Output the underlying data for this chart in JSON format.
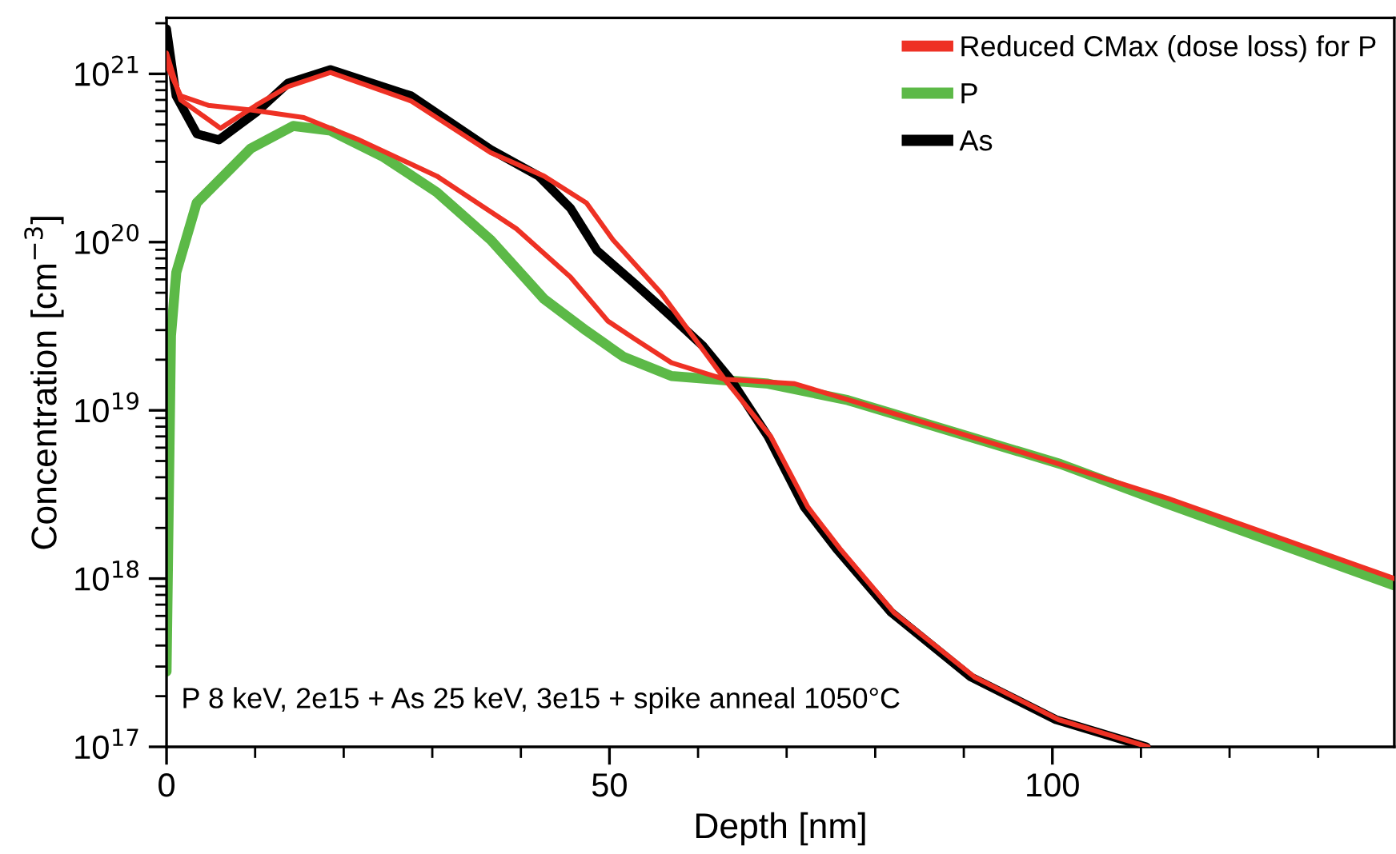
{
  "chart_data": {
    "type": "line",
    "xlabel": "Depth [nm]",
    "ylabel": "Concentration [cm$^{−3}$]",
    "log": "y",
    "xlim": [
      0,
      138.6
    ],
    "ylim": [
      1e+17,
      2.15e+21
    ],
    "xticks": [
      0,
      {
        "value": 10,
        "label": null
      },
      {
        "value": 20,
        "label": null
      },
      {
        "value": 30,
        "label": null
      },
      {
        "value": 40,
        "label": null
      },
      50,
      {
        "value": 60,
        "label": null
      },
      {
        "value": 70,
        "label": null
      },
      {
        "value": 80,
        "label": null
      },
      {
        "value": 90,
        "label": null
      },
      100,
      {
        "value": 110,
        "label": null
      },
      {
        "value": 120,
        "label": null
      },
      {
        "value": 130,
        "label": null
      }
    ],
    "yticks": [
      {
        "value": 1e+17,
        "label": "10$^{17}$"
      },
      {
        "value": 1e+18,
        "label": "10$^{18}$"
      },
      {
        "value": 1e+19,
        "label": "10$^{19}$"
      },
      {
        "value": 1e+20,
        "label": "10$^{20}$"
      },
      {
        "value": 1e+21,
        "label": "10$^{21}$"
      }
    ],
    "grid": false,
    "legend": "top right",
    "annotations": [
      "P 8 keV, 2e15 + As 25 keV, 3e15 + spike anneal 1050°C"
    ],
    "series": [
      {
        "name": "Reduced CMax (dose loss) for P",
        "color": "#ee3124",
        "x": [
          0,
          1.6,
          4.7,
          9.5,
          15.5,
          21.5,
          30.5,
          39.5,
          45.6,
          49.8,
          52.8,
          57.0,
          63.0,
          70.9,
          82.9,
          94.9,
          113.0,
          138.6
        ],
        "values": [
          1.14e+21,
          7.4e+20,
          6.5e+20,
          6.1e+20,
          5.5e+20,
          4.1e+20,
          2.47e+20,
          1.2e+20,
          6.2e+19,
          3.4e+19,
          2.67e+19,
          1.92e+19,
          1.53e+19,
          1.44e+19,
          9.3e+18,
          6e+18,
          3e+18,
          1e+18
        ]
      },
      {
        "name": "P",
        "color": "#5cb947",
        "x": [
          0,
          0.5,
          1.1,
          3.4,
          9.5,
          14.3,
          18.5,
          24.5,
          30.5,
          36.6,
          42.6,
          47.4,
          51.6,
          57.0,
          67.9,
          76.9,
          89.0,
          100.9,
          113.0,
          138.6
        ],
        "values": [
          2.8e+17,
          2.77e+19,
          6.6e+19,
          1.71e+20,
          3.6e+20,
          4.9e+20,
          4.6e+20,
          3.2e+20,
          1.98e+20,
          1.03e+20,
          4.6e+19,
          2.97e+19,
          2.08e+19,
          1.6e+19,
          1.44e+19,
          1.15e+19,
          7.4e+18,
          4.8e+18,
          2.78e+18,
          9.1e+17
        ]
      },
      {
        "name": "As",
        "color": "#000000",
        "x": [
          0,
          1.08,
          3.43,
          5.9,
          10.1,
          13.7,
          18.5,
          27.6,
          36.6,
          42.0,
          45.6,
          48.6,
          52.8,
          57.0,
          60.6,
          63.7,
          67.9,
          72.0,
          75.6,
          81.8,
          90.8,
          100.4,
          110.6
        ],
        "values": [
          1.85e+21,
          7.4e+20,
          4.4e+20,
          4.05e+20,
          5.9e+20,
          8.8e+20,
          1.06e+21,
          7.4e+20,
          3.55e+20,
          2.47e+20,
          1.59e+20,
          8.9e+19,
          5.7e+19,
          3.6e+19,
          2.4e+19,
          1.52e+19,
          7e+18,
          2.66e+18,
          1.51e+18,
          6.3e+17,
          2.6e+17,
          1.45e+17,
          1e+17
        ]
      },
      {
        "color": "#ee3124",
        "x": [
          0,
          1.6,
          6.1,
          10.1,
          13.7,
          18.5,
          27.6,
          36.6,
          42.6,
          47.4,
          50.4,
          55.8,
          63.0,
          68.2,
          72.4,
          76.0,
          82.1,
          91.2,
          100.7,
          110.8
        ],
        "values": [
          1.33e+21,
          7e+20,
          4.75e+20,
          6.5e+20,
          8.4e+20,
          1.02e+21,
          6.9e+20,
          3.4e+20,
          2.47e+20,
          1.71e+20,
          1.03e+20,
          5e+19,
          1.53e+19,
          7e+18,
          2.66e+18,
          1.51e+18,
          6.3e+17,
          2.6e+17,
          1.45e+17,
          1e+17
        ]
      }
    ]
  }
}
